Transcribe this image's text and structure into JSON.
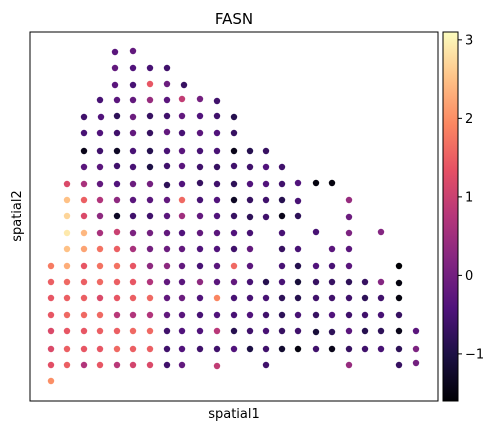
{
  "chart_data": {
    "type": "scatter",
    "title": "FASN",
    "xlabel": "spatial1",
    "ylabel": "spatial2",
    "grid": false,
    "colormap": "magma",
    "colorbar": {
      "vmin": -1.6,
      "vmax": 3.1,
      "ticks": [
        -1,
        0,
        1,
        2,
        3
      ],
      "tick_labels": [
        "−1",
        "0",
        "1",
        "2",
        "3"
      ]
    },
    "points": [
      [
        115,
        52,
        -0.3
      ],
      [
        133,
        51,
        -0.2
      ],
      [
        115,
        68,
        -0.2
      ],
      [
        133,
        68,
        -0.4
      ],
      [
        150,
        68,
        -0.5
      ],
      [
        167,
        68,
        -0.6
      ],
      [
        115,
        85,
        -0.3
      ],
      [
        133,
        85,
        -0.5
      ],
      [
        150,
        84,
        1.4
      ],
      [
        167,
        84,
        -0.1
      ],
      [
        184,
        85,
        -0.7
      ],
      [
        100,
        100,
        -0.5
      ],
      [
        117,
        100,
        -0.3
      ],
      [
        133,
        100,
        -0.2
      ],
      [
        150,
        100,
        0.4
      ],
      [
        167,
        100,
        -0.3
      ],
      [
        182,
        99,
        0.9
      ],
      [
        200,
        99,
        0.0
      ],
      [
        217,
        101,
        -0.6
      ],
      [
        84,
        117,
        -0.6
      ],
      [
        101,
        117,
        -0.4
      ],
      [
        117,
        116,
        -0.8
      ],
      [
        133,
        117,
        -0.1
      ],
      [
        150,
        116,
        -0.7
      ],
      [
        167,
        116,
        -0.6
      ],
      [
        182,
        116,
        -0.2
      ],
      [
        200,
        116,
        -0.4
      ],
      [
        217,
        116,
        -0.6
      ],
      [
        234,
        117,
        -0.9
      ],
      [
        84,
        133,
        -0.5
      ],
      [
        100,
        133,
        -0.4
      ],
      [
        117,
        133,
        -0.6
      ],
      [
        133,
        133,
        -0.2
      ],
      [
        150,
        133,
        -0.7
      ],
      [
        167,
        132,
        -0.2
      ],
      [
        182,
        133,
        -0.5
      ],
      [
        200,
        133,
        -0.3
      ],
      [
        217,
        133,
        -0.4
      ],
      [
        234,
        133,
        -0.7
      ],
      [
        84,
        151,
        -1.4
      ],
      [
        100,
        151,
        -0.6
      ],
      [
        117,
        151,
        -1.3
      ],
      [
        133,
        151,
        -0.5
      ],
      [
        150,
        151,
        -0.9
      ],
      [
        167,
        151,
        -0.5
      ],
      [
        182,
        151,
        -0.3
      ],
      [
        200,
        151,
        -0.5
      ],
      [
        217,
        151,
        -0.5
      ],
      [
        234,
        151,
        -1.4
      ],
      [
        250,
        151,
        -0.9
      ],
      [
        266,
        151,
        -0.7
      ],
      [
        84,
        167,
        -0.3
      ],
      [
        100,
        167,
        -0.3
      ],
      [
        117,
        166,
        -0.6
      ],
      [
        133,
        167,
        -0.5
      ],
      [
        150,
        167,
        -1.0
      ],
      [
        167,
        166,
        -0.6
      ],
      [
        182,
        166,
        -0.3
      ],
      [
        200,
        167,
        -0.6
      ],
      [
        217,
        167,
        -0.7
      ],
      [
        234,
        166,
        -0.6
      ],
      [
        250,
        167,
        -0.6
      ],
      [
        266,
        167,
        -0.4
      ],
      [
        282,
        167,
        -0.6
      ],
      [
        67,
        184,
        1.2
      ],
      [
        84,
        184,
        0.6
      ],
      [
        100,
        184,
        -0.2
      ],
      [
        117,
        184,
        -0.4
      ],
      [
        133,
        184,
        -0.1
      ],
      [
        150,
        184,
        0.0
      ],
      [
        167,
        185,
        -0.8
      ],
      [
        182,
        184,
        -0.4
      ],
      [
        200,
        183,
        -0.7
      ],
      [
        217,
        184,
        -0.6
      ],
      [
        234,
        184,
        -0.8
      ],
      [
        250,
        184,
        -0.4
      ],
      [
        266,
        184,
        -0.4
      ],
      [
        282,
        184,
        -0.6
      ],
      [
        298,
        183,
        -0.4
      ],
      [
        316,
        183,
        -1.5
      ],
      [
        332,
        183,
        -1.5
      ],
      [
        67,
        200,
        2.5
      ],
      [
        84,
        200,
        1.5
      ],
      [
        100,
        200,
        0.7
      ],
      [
        117,
        200,
        0.3
      ],
      [
        133,
        200,
        -0.3
      ],
      [
        150,
        200,
        -0.3
      ],
      [
        167,
        200,
        -0.2
      ],
      [
        182,
        200,
        1.6
      ],
      [
        200,
        200,
        -0.5
      ],
      [
        217,
        200,
        -0.4
      ],
      [
        234,
        200,
        -1.3
      ],
      [
        250,
        200,
        -0.7
      ],
      [
        266,
        200,
        -0.6
      ],
      [
        282,
        200,
        -0.9
      ],
      [
        298,
        201,
        -0.5
      ],
      [
        349,
        200,
        0.4
      ],
      [
        67,
        216,
        2.7
      ],
      [
        84,
        216,
        1.2
      ],
      [
        100,
        216,
        0.3
      ],
      [
        117,
        216,
        -1.3
      ],
      [
        133,
        216,
        -0.6
      ],
      [
        150,
        216,
        -0.6
      ],
      [
        167,
        216,
        -0.3
      ],
      [
        182,
        216,
        0.5
      ],
      [
        200,
        216,
        -0.2
      ],
      [
        217,
        216,
        -0.4
      ],
      [
        234,
        216,
        -0.7
      ],
      [
        250,
        217,
        -0.8
      ],
      [
        266,
        217,
        -0.6
      ],
      [
        282,
        216,
        -1.4
      ],
      [
        298,
        216,
        -0.8
      ],
      [
        349,
        217,
        -0.1
      ],
      [
        67,
        233,
        2.9
      ],
      [
        84,
        233,
        2.4
      ],
      [
        100,
        233,
        0.6
      ],
      [
        117,
        232,
        1.0
      ],
      [
        133,
        233,
        0.1
      ],
      [
        150,
        233,
        0.0
      ],
      [
        167,
        233,
        -0.2
      ],
      [
        182,
        233,
        -0.4
      ],
      [
        200,
        233,
        -0.2
      ],
      [
        217,
        233,
        -0.3
      ],
      [
        234,
        233,
        -0.4
      ],
      [
        250,
        233,
        -0.5
      ],
      [
        282,
        233,
        -0.5
      ],
      [
        316,
        232,
        -0.5
      ],
      [
        349,
        233,
        0.1
      ],
      [
        381,
        232,
        0.2
      ],
      [
        67,
        249,
        2.5
      ],
      [
        84,
        249,
        2.2
      ],
      [
        100,
        249,
        1.7
      ],
      [
        117,
        249,
        1.5
      ],
      [
        133,
        249,
        0.6
      ],
      [
        150,
        249,
        0.0
      ],
      [
        167,
        249,
        -0.1
      ],
      [
        182,
        249,
        -0.2
      ],
      [
        200,
        249,
        -0.4
      ],
      [
        217,
        249,
        -0.4
      ],
      [
        234,
        249,
        -0.6
      ],
      [
        250,
        249,
        -0.2
      ],
      [
        282,
        249,
        -0.7
      ],
      [
        298,
        249,
        -0.5
      ],
      [
        332,
        249,
        -0.3
      ],
      [
        349,
        249,
        -0.3
      ],
      [
        51,
        266,
        1.8
      ],
      [
        67,
        266,
        2.3
      ],
      [
        84,
        266,
        1.4
      ],
      [
        100,
        266,
        1.7
      ],
      [
        117,
        266,
        1.7
      ],
      [
        133,
        266,
        1.4
      ],
      [
        150,
        266,
        0.3
      ],
      [
        167,
        266,
        0.3
      ],
      [
        182,
        266,
        -0.2
      ],
      [
        200,
        266,
        -0.5
      ],
      [
        217,
        266,
        -0.3
      ],
      [
        234,
        266,
        1.6
      ],
      [
        250,
        266,
        -0.3
      ],
      [
        282,
        266,
        -0.5
      ],
      [
        298,
        266,
        -0.9
      ],
      [
        316,
        266,
        -0.4
      ],
      [
        332,
        266,
        -0.5
      ],
      [
        349,
        266,
        -0.3
      ],
      [
        399,
        266,
        -1.6
      ],
      [
        51,
        282,
        1.5
      ],
      [
        67,
        282,
        1.6
      ],
      [
        84,
        282,
        1.5
      ],
      [
        100,
        282,
        1.6
      ],
      [
        117,
        282,
        1.5
      ],
      [
        133,
        282,
        1.4
      ],
      [
        150,
        282,
        0.7
      ],
      [
        167,
        282,
        -0.2
      ],
      [
        182,
        282,
        -0.3
      ],
      [
        200,
        282,
        0.3
      ],
      [
        217,
        282,
        -0.3
      ],
      [
        234,
        282,
        -0.2
      ],
      [
        250,
        282,
        -0.5
      ],
      [
        266,
        282,
        -0.9
      ],
      [
        282,
        282,
        -0.5
      ],
      [
        298,
        282,
        -1.1
      ],
      [
        316,
        282,
        -0.7
      ],
      [
        332,
        282,
        -0.7
      ],
      [
        349,
        282,
        -0.8
      ],
      [
        365,
        282,
        -0.7
      ],
      [
        381,
        282,
        0.2
      ],
      [
        399,
        283,
        -1.5
      ],
      [
        51,
        298,
        1.4
      ],
      [
        67,
        298,
        1.5
      ],
      [
        84,
        298,
        1.5
      ],
      [
        100,
        298,
        1.2
      ],
      [
        117,
        298,
        1.4
      ],
      [
        133,
        298,
        1.5
      ],
      [
        150,
        298,
        1.6
      ],
      [
        167,
        298,
        -0.2
      ],
      [
        182,
        298,
        -0.1
      ],
      [
        200,
        298,
        -0.4
      ],
      [
        217,
        298,
        1.9
      ],
      [
        234,
        298,
        -0.5
      ],
      [
        250,
        298,
        -0.5
      ],
      [
        266,
        298,
        -0.5
      ],
      [
        282,
        298,
        -0.8
      ],
      [
        298,
        298,
        -0.9
      ],
      [
        316,
        298,
        -0.6
      ],
      [
        332,
        298,
        -0.6
      ],
      [
        349,
        298,
        -0.6
      ],
      [
        365,
        298,
        -0.8
      ],
      [
        381,
        298,
        -0.6
      ],
      [
        399,
        298,
        -1.5
      ],
      [
        51,
        315,
        1.4
      ],
      [
        67,
        315,
        1.6
      ],
      [
        84,
        315,
        1.6
      ],
      [
        100,
        315,
        1.6
      ],
      [
        117,
        315,
        0.8
      ],
      [
        133,
        315,
        0.7
      ],
      [
        150,
        315,
        0.7
      ],
      [
        167,
        315,
        -0.2
      ],
      [
        182,
        315,
        -0.3
      ],
      [
        200,
        315,
        -0.5
      ],
      [
        217,
        315,
        -0.4
      ],
      [
        234,
        315,
        -0.5
      ],
      [
        250,
        315,
        -0.4
      ],
      [
        266,
        315,
        -0.6
      ],
      [
        282,
        315,
        -0.8
      ],
      [
        298,
        315,
        -0.5
      ],
      [
        316,
        315,
        -0.7
      ],
      [
        332,
        315,
        -0.4
      ],
      [
        349,
        315,
        -0.6
      ],
      [
        365,
        315,
        -0.6
      ],
      [
        381,
        315,
        -0.5
      ],
      [
        399,
        315,
        -0.7
      ],
      [
        51,
        331,
        1.2
      ],
      [
        67,
        331,
        1.4
      ],
      [
        84,
        331,
        1.4
      ],
      [
        100,
        331,
        1.5
      ],
      [
        117,
        331,
        1.5
      ],
      [
        133,
        331,
        1.6
      ],
      [
        150,
        331,
        1.6
      ],
      [
        167,
        331,
        -0.6
      ],
      [
        182,
        331,
        -0.4
      ],
      [
        200,
        331,
        -0.4
      ],
      [
        217,
        331,
        0.8
      ],
      [
        234,
        331,
        -0.9
      ],
      [
        250,
        331,
        -0.6
      ],
      [
        266,
        331,
        -0.5
      ],
      [
        282,
        331,
        -0.7
      ],
      [
        298,
        331,
        -0.6
      ],
      [
        316,
        332,
        -1.1
      ],
      [
        332,
        332,
        -0.8
      ],
      [
        349,
        331,
        -0.3
      ],
      [
        365,
        331,
        -0.9
      ],
      [
        381,
        331,
        -0.8
      ],
      [
        399,
        331,
        -1.4
      ],
      [
        416,
        331,
        -0.3
      ],
      [
        51,
        349,
        1.2
      ],
      [
        67,
        349,
        1.5
      ],
      [
        84,
        349,
        1.4
      ],
      [
        100,
        349,
        1.4
      ],
      [
        117,
        349,
        1.6
      ],
      [
        133,
        349,
        1.5
      ],
      [
        150,
        349,
        1.5
      ],
      [
        167,
        349,
        -0.6
      ],
      [
        182,
        349,
        -0.4
      ],
      [
        200,
        349,
        -0.6
      ],
      [
        217,
        349,
        -0.6
      ],
      [
        234,
        349,
        -0.4
      ],
      [
        250,
        349,
        -1.0
      ],
      [
        266,
        349,
        -0.6
      ],
      [
        282,
        349,
        -1.2
      ],
      [
        298,
        349,
        -1.5
      ],
      [
        316,
        349,
        -0.6
      ],
      [
        332,
        349,
        -1.4
      ],
      [
        349,
        349,
        -0.7
      ],
      [
        365,
        349,
        -0.6
      ],
      [
        381,
        349,
        -0.5
      ],
      [
        399,
        349,
        -0.8
      ],
      [
        416,
        349,
        0.1
      ],
      [
        51,
        365,
        1.3
      ],
      [
        67,
        365,
        1.5
      ],
      [
        84,
        365,
        0.7
      ],
      [
        100,
        365,
        1.4
      ],
      [
        117,
        365,
        0.8
      ],
      [
        133,
        365,
        1.1
      ],
      [
        150,
        365,
        1.2
      ],
      [
        167,
        365,
        -0.6
      ],
      [
        182,
        365,
        -0.2
      ],
      [
        217,
        366,
        0.9
      ],
      [
        266,
        365,
        -0.6
      ],
      [
        349,
        365,
        0.4
      ],
      [
        399,
        365,
        -0.7
      ],
      [
        416,
        363,
        0.0
      ],
      [
        51,
        381,
        2.0
      ]
    ]
  }
}
